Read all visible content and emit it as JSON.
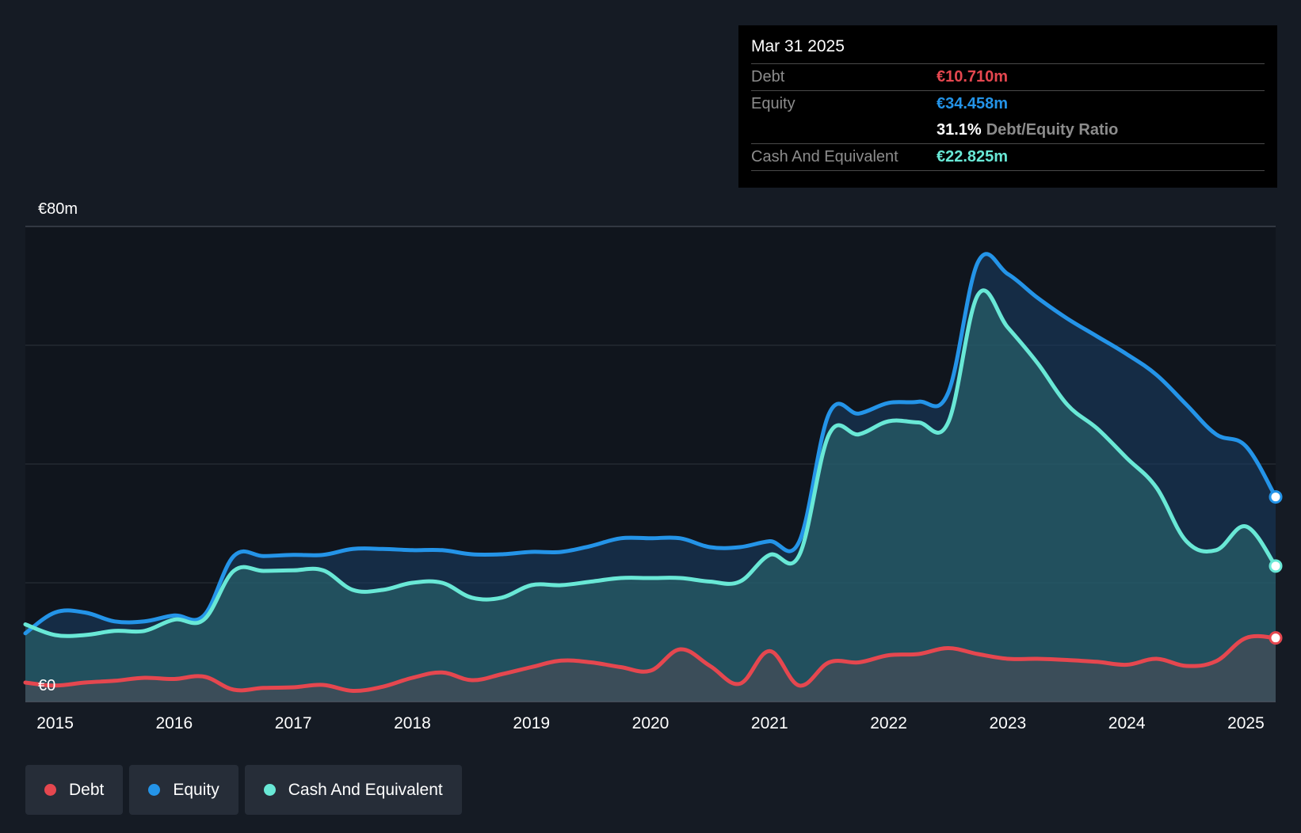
{
  "colors": {
    "debt": "#e5474f",
    "equity": "#2494e8",
    "cash": "#69e8d6",
    "grid": "#3a404a",
    "text": "#ffffff"
  },
  "tooltip": {
    "date": "Mar 31 2025",
    "debt_label": "Debt",
    "debt_value": "€10.710m",
    "equity_label": "Equity",
    "equity_value": "€34.458m",
    "ratio_value": "31.1%",
    "ratio_label": "Debt/Equity Ratio",
    "cash_label": "Cash And Equivalent",
    "cash_value": "€22.825m"
  },
  "legend": [
    {
      "name": "Debt",
      "color": "#e5474f"
    },
    {
      "name": "Equity",
      "color": "#2494e8"
    },
    {
      "name": "Cash And Equivalent",
      "color": "#69e8d6"
    }
  ],
  "chart_data": {
    "type": "area",
    "title": "",
    "xlabel": "",
    "ylabel": "",
    "xlim": [
      2014.75,
      2025.25
    ],
    "ylim": [
      0,
      80
    ],
    "y_tick_labels": [
      "€0",
      "€80m"
    ],
    "y_gridlines": [
      0,
      20,
      40,
      60,
      80
    ],
    "x_ticks": [
      2015,
      2016,
      2017,
      2018,
      2019,
      2020,
      2021,
      2022,
      2023,
      2024,
      2025
    ],
    "grid": true,
    "legend_position": "bottom-left",
    "series": [
      {
        "name": "Equity",
        "color": "#2494e8",
        "x": [
          2014.75,
          2015.0,
          2015.25,
          2015.5,
          2015.75,
          2016.0,
          2016.25,
          2016.5,
          2016.75,
          2017.0,
          2017.25,
          2017.5,
          2017.75,
          2018.0,
          2018.25,
          2018.5,
          2018.75,
          2019.0,
          2019.25,
          2019.5,
          2019.75,
          2020.0,
          2020.25,
          2020.5,
          2020.75,
          2021.0,
          2021.25,
          2021.5,
          2021.75,
          2022.0,
          2022.25,
          2022.5,
          2022.75,
          2023.0,
          2023.25,
          2023.5,
          2023.75,
          2024.0,
          2024.25,
          2024.5,
          2024.75,
          2025.0,
          2025.25
        ],
        "values": [
          11.5,
          15.0,
          15.0,
          13.5,
          13.5,
          14.5,
          14.5,
          24.5,
          24.5,
          24.7,
          24.7,
          25.7,
          25.7,
          25.5,
          25.5,
          24.8,
          24.8,
          25.2,
          25.2,
          26.2,
          27.5,
          27.5,
          27.5,
          26.0,
          26.0,
          27.0,
          27.0,
          48.5,
          48.5,
          50.3,
          50.5,
          52.0,
          74.0,
          72.0,
          68.0,
          64.5,
          61.5,
          58.5,
          55.0,
          50.0,
          45.0,
          43.0,
          34.458
        ]
      },
      {
        "name": "Cash And Equivalent",
        "color": "#69e8d6",
        "x": [
          2014.75,
          2015.0,
          2015.25,
          2015.5,
          2015.75,
          2016.0,
          2016.25,
          2016.5,
          2016.75,
          2017.0,
          2017.25,
          2017.5,
          2017.75,
          2018.0,
          2018.25,
          2018.5,
          2018.75,
          2019.0,
          2019.25,
          2019.5,
          2019.75,
          2020.0,
          2020.25,
          2020.5,
          2020.75,
          2021.0,
          2021.25,
          2021.5,
          2021.75,
          2022.0,
          2022.25,
          2022.5,
          2022.75,
          2023.0,
          2023.25,
          2023.5,
          2023.75,
          2024.0,
          2024.25,
          2024.5,
          2024.75,
          2025.0,
          2025.25
        ],
        "values": [
          13.0,
          11.2,
          11.2,
          11.9,
          11.9,
          13.8,
          13.8,
          22.0,
          22.0,
          22.1,
          22.1,
          18.8,
          18.8,
          20.0,
          20.0,
          17.5,
          17.5,
          19.6,
          19.6,
          20.2,
          20.8,
          20.8,
          20.8,
          20.2,
          20.2,
          24.7,
          24.7,
          45.0,
          45.0,
          47.2,
          47.0,
          47.0,
          68.5,
          63.0,
          57.0,
          50.0,
          46.0,
          41.0,
          36.0,
          27.0,
          25.5,
          29.5,
          22.825
        ]
      },
      {
        "name": "Debt",
        "color": "#e5474f",
        "x": [
          2014.75,
          2015.0,
          2015.25,
          2015.5,
          2015.75,
          2016.0,
          2016.25,
          2016.5,
          2016.75,
          2017.0,
          2017.25,
          2017.5,
          2017.75,
          2018.0,
          2018.25,
          2018.5,
          2018.75,
          2019.0,
          2019.25,
          2019.5,
          2019.75,
          2020.0,
          2020.25,
          2020.5,
          2020.75,
          2021.0,
          2021.25,
          2021.5,
          2021.75,
          2022.0,
          2022.25,
          2022.5,
          2022.75,
          2023.0,
          2023.25,
          2023.5,
          2023.75,
          2024.0,
          2024.25,
          2024.5,
          2024.75,
          2025.0,
          2025.25
        ],
        "values": [
          3.2,
          2.7,
          3.2,
          3.5,
          4.0,
          3.8,
          4.2,
          2.0,
          2.3,
          2.4,
          2.8,
          1.8,
          2.5,
          4.0,
          4.9,
          3.6,
          4.6,
          5.8,
          6.9,
          6.6,
          5.8,
          5.2,
          8.8,
          6.0,
          3.0,
          8.5,
          2.7,
          6.6,
          6.6,
          7.8,
          8.0,
          9.0,
          8.0,
          7.2,
          7.2,
          7.0,
          6.7,
          6.2,
          7.2,
          6.0,
          6.8,
          10.7,
          10.71
        ]
      }
    ]
  }
}
